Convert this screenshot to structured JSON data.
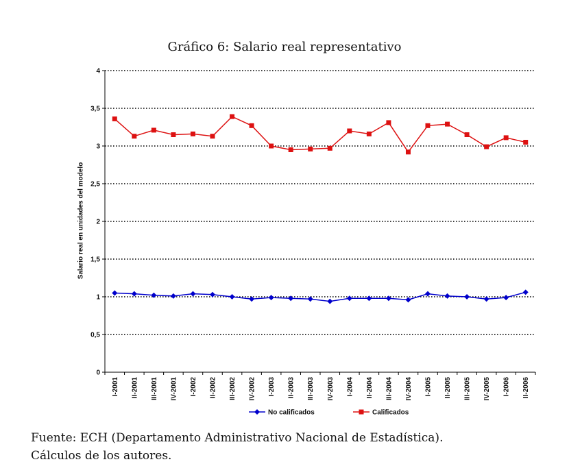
{
  "chart_data": {
    "type": "line",
    "title": "Gráfico 6: Salario real representativo",
    "xlabel": "",
    "ylabel": "Salario real en unidades del modelo",
    "ylim": [
      0,
      4
    ],
    "yticks": [
      "0",
      "0,5",
      "1",
      "1,5",
      "2",
      "2,5",
      "3",
      "3,5",
      "4"
    ],
    "ytick_values": [
      0,
      0.5,
      1,
      1.5,
      2,
      2.5,
      3,
      3.5,
      4
    ],
    "grid": "horizontal dotted",
    "legend": "bottom",
    "categories": [
      "I-2001",
      "II-2001",
      "III-2001",
      "IV-2001",
      "I-2002",
      "II-2002",
      "III-2002",
      "IV-2002",
      "I-2003",
      "II-2003",
      "III-2003",
      "IV-2003",
      "I-2004",
      "II-2004",
      "III-2004",
      "IV-2004",
      "I-2005",
      "II-2005",
      "III-2005",
      "IV-2005",
      "I-2006",
      "II-2006"
    ],
    "series": [
      {
        "name": "No calificados",
        "color": "#0000cc",
        "marker": "diamond",
        "values": [
          1.05,
          1.04,
          1.02,
          1.01,
          1.04,
          1.03,
          1.0,
          0.97,
          0.99,
          0.98,
          0.97,
          0.94,
          0.98,
          0.98,
          0.98,
          0.96,
          1.04,
          1.01,
          1.0,
          0.97,
          0.99,
          1.06
        ]
      },
      {
        "name": "Calificados",
        "color": "#dd1111",
        "marker": "square",
        "values": [
          3.36,
          3.13,
          3.21,
          3.15,
          3.16,
          3.13,
          3.39,
          3.27,
          3.0,
          2.95,
          2.96,
          2.97,
          3.2,
          3.16,
          3.31,
          2.92,
          3.27,
          3.29,
          3.15,
          2.99,
          3.11,
          3.05
        ]
      }
    ]
  },
  "source": {
    "line1": "Fuente: ECH (Departamento Administrativo Nacional de Estadística).",
    "line2": "Cálculos de los autores."
  }
}
